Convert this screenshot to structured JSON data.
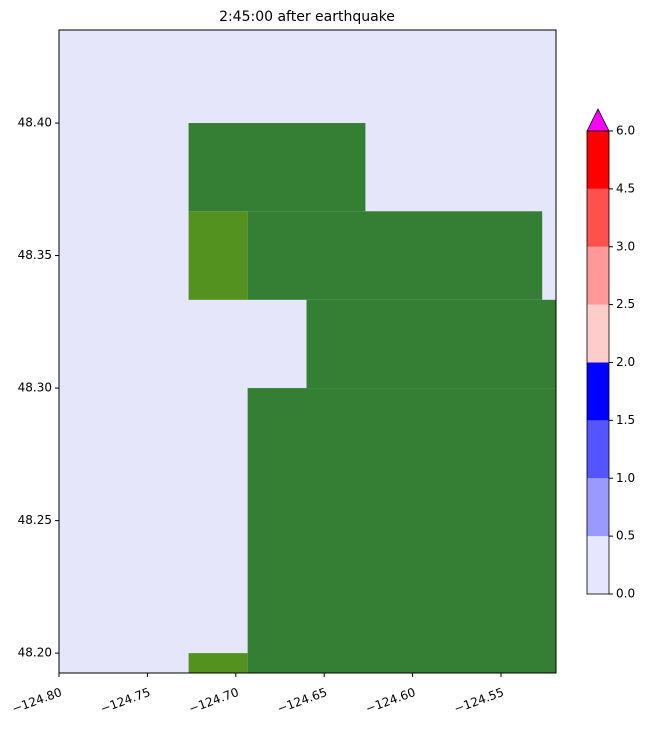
{
  "chart_data": {
    "type": "map",
    "title": "2:45:00 after earthquake",
    "background": "#e6e6fa",
    "xlim": [
      -124.8,
      -124.5189
    ],
    "ylim": [
      48.1925,
      48.4351
    ],
    "xticks": [
      {
        "value": -124.8,
        "label": "−124.80"
      },
      {
        "value": -124.75,
        "label": "−124.75"
      },
      {
        "value": -124.7,
        "label": "−124.70"
      },
      {
        "value": -124.65,
        "label": "−124.65"
      },
      {
        "value": -124.6,
        "label": "−124.60"
      },
      {
        "value": -124.55,
        "label": "−124.55"
      }
    ],
    "yticks": [
      {
        "value": 48.2,
        "label": "48.20"
      },
      {
        "value": 48.25,
        "label": "48.25"
      },
      {
        "value": 48.3,
        "label": "48.30"
      },
      {
        "value": 48.35,
        "label": "48.35"
      },
      {
        "value": 48.4,
        "label": "48.40"
      }
    ],
    "regions": [
      {
        "lon": [
          -124.7267,
          -124.6267
        ],
        "lat": [
          48.3667,
          48.4
        ],
        "color": "#347f33"
      },
      {
        "lon": [
          -124.6933,
          -124.5267
        ],
        "lat": [
          48.3333,
          48.3667
        ],
        "color": "#347f33"
      },
      {
        "lon": [
          -124.7267,
          -124.6933
        ],
        "lat": [
          48.3333,
          48.3667
        ],
        "color": "#53921f"
      },
      {
        "lon": [
          -124.66,
          -124.4933
        ],
        "lat": [
          48.3,
          48.3333
        ],
        "color": "#347f33"
      },
      {
        "lon": [
          -124.6933,
          -124.4933
        ],
        "lat": [
          48.1667,
          48.3
        ],
        "color": "#347f33"
      },
      {
        "lon": [
          -124.7267,
          -124.6933
        ],
        "lat": [
          48.1667,
          48.2
        ],
        "color": "#53921f"
      }
    ],
    "colorbar": {
      "levels": [
        {
          "value": 0,
          "label": "0.0"
        },
        {
          "value": 0.5,
          "label": "0.5"
        },
        {
          "value": 1,
          "label": "1.0"
        },
        {
          "value": 1.5,
          "label": "1.5"
        },
        {
          "value": 2,
          "label": "2.0"
        },
        {
          "value": 2.5,
          "label": "2.5"
        },
        {
          "value": 3,
          "label": "3.0"
        },
        {
          "value": 4.5,
          "label": "4.5"
        },
        {
          "value": 6,
          "label": "6.0"
        }
      ],
      "colors": [
        "#e6e6ff",
        "#9999ff",
        "#5555ff",
        "#0000ff",
        "#ffcccc",
        "#ff9999",
        "#ff5050",
        "#ff0000"
      ],
      "extend_color": "#ff00ff"
    }
  }
}
